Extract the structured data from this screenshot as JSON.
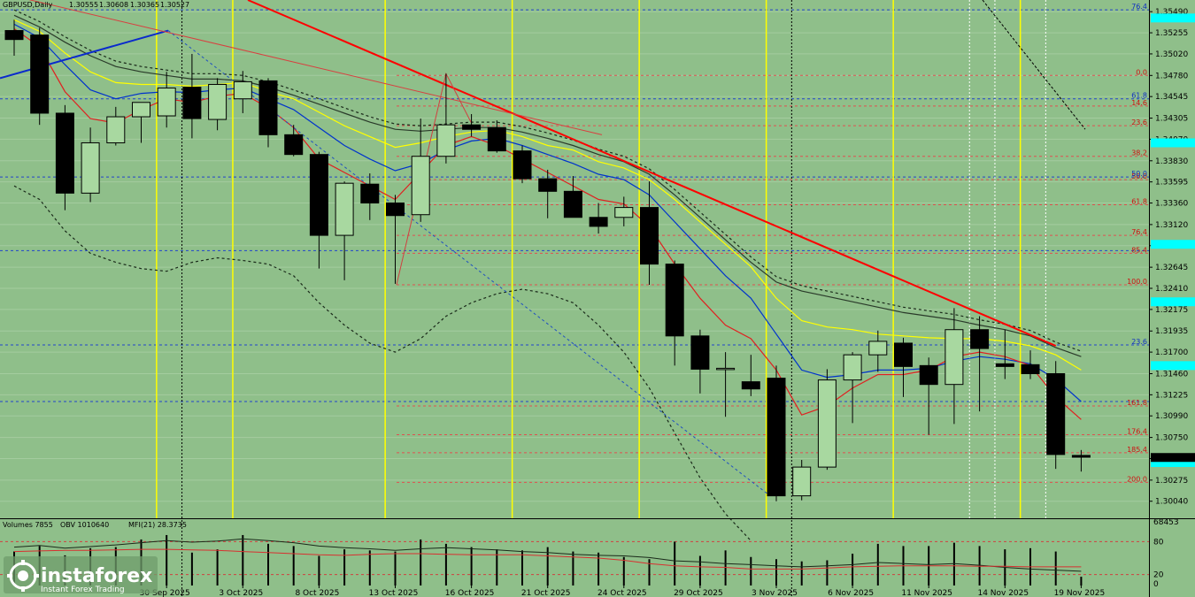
{
  "header": {
    "symbol": "GBPUSD,Daily",
    "open": "1.30555",
    "high": "1.30608",
    "low": "1.30365",
    "close": "1.30527"
  },
  "indicator_header": {
    "volumes": "Volumes 7855",
    "obv": "OBV 1010640",
    "mfi": "MFI(21) 28.3735"
  },
  "watermark": {
    "brand": "instaforex",
    "tagline": "Instant Forex Trading"
  },
  "colors": {
    "background": "#8fbf8a",
    "bull": "#a8d8a0",
    "bear": "#000000",
    "trend": "#ff0000",
    "blue": "#0033cc",
    "yellow": "#ffff00",
    "cyan": "#00ffff"
  },
  "chart_data": {
    "type": "candlestick",
    "y_ticks": [
      "1.35490",
      "1.35255",
      "1.35020",
      "1.34780",
      "1.34545",
      "1.34305",
      "1.34070",
      "1.33830",
      "1.33595",
      "1.33360",
      "1.33120",
      "1.32885",
      "1.32645",
      "1.32410",
      "1.32175",
      "1.31935",
      "1.31700",
      "1.31460",
      "1.31225",
      "1.30990",
      "1.30750",
      "1.30515",
      "1.30275",
      "1.30040"
    ],
    "ylim": [
      1.2985,
      1.3562
    ],
    "current_price": "1.30527",
    "x_labels": [
      {
        "i": 6,
        "text": "30 Sep 2025"
      },
      {
        "i": 9,
        "text": "3 Oct 2025"
      },
      {
        "i": 12,
        "text": "8 Oct 2025"
      },
      {
        "i": 15,
        "text": "13 Oct 2025"
      },
      {
        "i": 18,
        "text": "16 Oct 2025"
      },
      {
        "i": 21,
        "text": "21 Oct 2025"
      },
      {
        "i": 24,
        "text": "24 Oct 2025"
      },
      {
        "i": 27,
        "text": "29 Oct 2025"
      },
      {
        "i": 30,
        "text": "3 Nov 2025"
      },
      {
        "i": 33,
        "text": "6 Nov 2025"
      },
      {
        "i": 36,
        "text": "11 Nov 2025"
      },
      {
        "i": 39,
        "text": "14 Nov 2025"
      },
      {
        "i": 42,
        "text": "19 Nov 2025"
      }
    ],
    "candles": [
      {
        "o": 1.3528,
        "h": 1.354,
        "l": 1.35,
        "c": 1.3518
      },
      {
        "o": 1.3523,
        "h": 1.3531,
        "l": 1.3423,
        "c": 1.3436
      },
      {
        "o": 1.3436,
        "h": 1.3445,
        "l": 1.3328,
        "c": 1.3347
      },
      {
        "o": 1.3347,
        "h": 1.342,
        "l": 1.3337,
        "c": 1.3403
      },
      {
        "o": 1.3403,
        "h": 1.3443,
        "l": 1.34,
        "c": 1.3432
      },
      {
        "o": 1.3432,
        "h": 1.3443,
        "l": 1.3403,
        "c": 1.3448
      },
      {
        "o": 1.3433,
        "h": 1.3482,
        "l": 1.342,
        "c": 1.3464
      },
      {
        "o": 1.3465,
        "h": 1.3502,
        "l": 1.3408,
        "c": 1.343
      },
      {
        "o": 1.3429,
        "h": 1.3475,
        "l": 1.3417,
        "c": 1.3468
      },
      {
        "o": 1.3452,
        "h": 1.3483,
        "l": 1.3436,
        "c": 1.3471
      },
      {
        "o": 1.3472,
        "h": 1.3475,
        "l": 1.3398,
        "c": 1.3412
      },
      {
        "o": 1.3412,
        "h": 1.3423,
        "l": 1.3388,
        "c": 1.339
      },
      {
        "o": 1.339,
        "h": 1.3393,
        "l": 1.3263,
        "c": 1.33
      },
      {
        "o": 1.33,
        "h": 1.336,
        "l": 1.325,
        "c": 1.3358
      },
      {
        "o": 1.3357,
        "h": 1.3369,
        "l": 1.3317,
        "c": 1.3336
      },
      {
        "o": 1.3336,
        "h": 1.3345,
        "l": 1.3246,
        "c": 1.3322
      },
      {
        "o": 1.3323,
        "h": 1.343,
        "l": 1.3315,
        "c": 1.3388
      },
      {
        "o": 1.3388,
        "h": 1.348,
        "l": 1.338,
        "c": 1.3423
      },
      {
        "o": 1.3423,
        "h": 1.3435,
        "l": 1.341,
        "c": 1.3418
      },
      {
        "o": 1.342,
        "h": 1.3428,
        "l": 1.3392,
        "c": 1.3394
      },
      {
        "o": 1.3394,
        "h": 1.34,
        "l": 1.3358,
        "c": 1.3363
      },
      {
        "o": 1.3363,
        "h": 1.3373,
        "l": 1.3319,
        "c": 1.3349
      },
      {
        "o": 1.3349,
        "h": 1.3366,
        "l": 1.3321,
        "c": 1.332
      },
      {
        "o": 1.332,
        "h": 1.3336,
        "l": 1.3302,
        "c": 1.331
      },
      {
        "o": 1.332,
        "h": 1.3343,
        "l": 1.331,
        "c": 1.3331
      },
      {
        "o": 1.3331,
        "h": 1.336,
        "l": 1.3245,
        "c": 1.3268
      },
      {
        "o": 1.3268,
        "h": 1.3272,
        "l": 1.3155,
        "c": 1.3188
      },
      {
        "o": 1.3188,
        "h": 1.3195,
        "l": 1.3124,
        "c": 1.3151
      },
      {
        "o": 1.3151,
        "h": 1.317,
        "l": 1.3098,
        "c": 1.3152
      },
      {
        "o": 1.3137,
        "h": 1.3167,
        "l": 1.3121,
        "c": 1.3129
      },
      {
        "o": 1.3141,
        "h": 1.3155,
        "l": 1.3004,
        "c": 1.301
      },
      {
        "o": 1.301,
        "h": 1.305,
        "l": 1.3005,
        "c": 1.3042
      },
      {
        "o": 1.3042,
        "h": 1.3151,
        "l": 1.3039,
        "c": 1.3139
      },
      {
        "o": 1.3139,
        "h": 1.317,
        "l": 1.3091,
        "c": 1.3167
      },
      {
        "o": 1.3167,
        "h": 1.3194,
        "l": 1.3148,
        "c": 1.3182
      },
      {
        "o": 1.318,
        "h": 1.3186,
        "l": 1.312,
        "c": 1.3154
      },
      {
        "o": 1.3155,
        "h": 1.3164,
        "l": 1.3078,
        "c": 1.3134
      },
      {
        "o": 1.3134,
        "h": 1.3219,
        "l": 1.309,
        "c": 1.3195
      },
      {
        "o": 1.3195,
        "h": 1.321,
        "l": 1.3104,
        "c": 1.3174
      },
      {
        "o": 1.3157,
        "h": 1.3195,
        "l": 1.314,
        "c": 1.3154
      },
      {
        "o": 1.3156,
        "h": 1.3172,
        "l": 1.314,
        "c": 1.3146
      },
      {
        "o": 1.3146,
        "h": 1.316,
        "l": 1.304,
        "c": 1.3056
      },
      {
        "o": 1.3055,
        "h": 1.3061,
        "l": 1.3037,
        "c": 1.3053
      }
    ],
    "ma_red": [
      1.353,
      1.351,
      1.346,
      1.343,
      1.3425,
      1.344,
      1.3452,
      1.3448,
      1.3455,
      1.3458,
      1.3442,
      1.342,
      1.3385,
      1.337,
      1.3355,
      1.334,
      1.337,
      1.34,
      1.341,
      1.34,
      1.3385,
      1.337,
      1.3355,
      1.334,
      1.3335,
      1.331,
      1.3268,
      1.323,
      1.32,
      1.3185,
      1.315,
      1.31,
      1.311,
      1.313,
      1.3145,
      1.3145,
      1.315,
      1.3165,
      1.317,
      1.3165,
      1.3155,
      1.312,
      1.3095
    ],
    "ma_blue": [
      1.3535,
      1.352,
      1.349,
      1.3462,
      1.3452,
      1.3458,
      1.346,
      1.3459,
      1.3462,
      1.3464,
      1.3452,
      1.344,
      1.342,
      1.34,
      1.3385,
      1.3372,
      1.338,
      1.3395,
      1.3405,
      1.3408,
      1.34,
      1.339,
      1.338,
      1.3368,
      1.3362,
      1.3345,
      1.3315,
      1.3285,
      1.3255,
      1.323,
      1.319,
      1.315,
      1.3142,
      1.3145,
      1.315,
      1.315,
      1.3152,
      1.316,
      1.3165,
      1.3162,
      1.3157,
      1.314,
      1.3115
    ],
    "ma_yellow": [
      1.354,
      1.3527,
      1.3503,
      1.3482,
      1.347,
      1.3468,
      1.3468,
      1.3466,
      1.3468,
      1.347,
      1.346,
      1.3452,
      1.3437,
      1.3422,
      1.341,
      1.3398,
      1.3403,
      1.341,
      1.3415,
      1.3417,
      1.341,
      1.34,
      1.3395,
      1.3382,
      1.3375,
      1.3362,
      1.334,
      1.3315,
      1.329,
      1.3265,
      1.323,
      1.3205,
      1.3198,
      1.3195,
      1.319,
      1.3188,
      1.3186,
      1.3185,
      1.3185,
      1.3182,
      1.3177,
      1.3167,
      1.315
    ],
    "ma_black": [
      1.3545,
      1.3532,
      1.3515,
      1.35,
      1.3488,
      1.3482,
      1.3478,
      1.3474,
      1.3474,
      1.3472,
      1.3465,
      1.3456,
      1.3446,
      1.3436,
      1.3426,
      1.3418,
      1.3416,
      1.3418,
      1.342,
      1.342,
      1.3415,
      1.3408,
      1.34,
      1.339,
      1.3382,
      1.3368,
      1.3345,
      1.332,
      1.3295,
      1.327,
      1.3248,
      1.3238,
      1.3232,
      1.3226,
      1.322,
      1.3214,
      1.321,
      1.3206,
      1.32,
      1.3195,
      1.3188,
      1.3175,
      1.3165
    ],
    "bb_lower": [
      1.3355,
      1.334,
      1.3305,
      1.328,
      1.327,
      1.3263,
      1.326,
      1.327,
      1.3275,
      1.3272,
      1.3268,
      1.3255,
      1.3225,
      1.32,
      1.318,
      1.317,
      1.3185,
      1.321,
      1.3225,
      1.3235,
      1.324,
      1.3235,
      1.3225,
      1.32,
      1.317,
      1.313,
      1.308,
      1.303,
      1.299,
      1.296
    ],
    "fib_levels": [
      {
        "label": "0.0",
        "price": 1.3478
      },
      {
        "label": "14.6",
        "price": 1.3444
      },
      {
        "label": "23.6",
        "price": 1.3422
      },
      {
        "label": "38.2",
        "price": 1.3388
      },
      {
        "label": "50.0",
        "price": 1.3362
      },
      {
        "label": "61.8",
        "price": 1.3334
      },
      {
        "label": "76.4",
        "price": 1.33
      },
      {
        "label": "85.4",
        "price": 1.328
      },
      {
        "label": "100.0",
        "price": 1.3245
      },
      {
        "label": "161.8",
        "price": 1.311
      },
      {
        "label": "176.4",
        "price": 1.3078
      },
      {
        "label": "185.4",
        "price": 1.3058
      },
      {
        "label": "200.0",
        "price": 1.3025
      }
    ],
    "blue_fib_levels": [
      {
        "label": "76.4",
        "price": 1.3551
      },
      {
        "label": "61.8",
        "price": 1.3452
      },
      {
        "label": "50.0",
        "price": 1.3365
      },
      {
        "label": "",
        "price": 1.3283
      },
      {
        "label": "23.6",
        "price": 1.3178
      },
      {
        "label": "",
        "price": 1.3115
      }
    ],
    "cyan_boxes": [
      1.3542,
      1.3403,
      1.329,
      1.3226,
      1.3155,
      1.3047
    ],
    "yellow_vlines": [
      6,
      9,
      15,
      20,
      25,
      30,
      35,
      40
    ],
    "white_dotted_vlines": [
      38,
      39,
      41
    ],
    "black_dotted_vlines": [
      7,
      31
    ],
    "volume_axis": [
      "68453",
      "80",
      "20",
      "0"
    ],
    "volumes": [
      62,
      72,
      55,
      68,
      70,
      84,
      92,
      60,
      66,
      92,
      76,
      72,
      54,
      66,
      64,
      62,
      84,
      76,
      70,
      66,
      64,
      70,
      62,
      60,
      52,
      48,
      80,
      54,
      64,
      52,
      48,
      44,
      46,
      58,
      76,
      72,
      72,
      78,
      72,
      66,
      68,
      62,
      16
    ],
    "obv": [
      70,
      73,
      68,
      71,
      74,
      78,
      82,
      79,
      81,
      85,
      82,
      78,
      72,
      69,
      67,
      64,
      67,
      69,
      67,
      65,
      62,
      60,
      57,
      55,
      54,
      51,
      45,
      43,
      40,
      38,
      36,
      34,
      36,
      38,
      42,
      40,
      38,
      40,
      37,
      33,
      30,
      28,
      26
    ],
    "mfi": [
      62,
      63,
      64,
      64,
      65,
      66,
      66,
      65,
      64,
      62,
      60,
      58,
      56,
      55,
      57,
      58,
      58,
      57,
      56,
      56,
      56,
      54,
      52,
      50,
      46,
      40,
      36,
      34,
      33,
      30,
      30,
      30,
      32,
      34,
      35,
      36,
      36,
      36,
      35,
      35,
      34,
      34,
      34
    ]
  }
}
